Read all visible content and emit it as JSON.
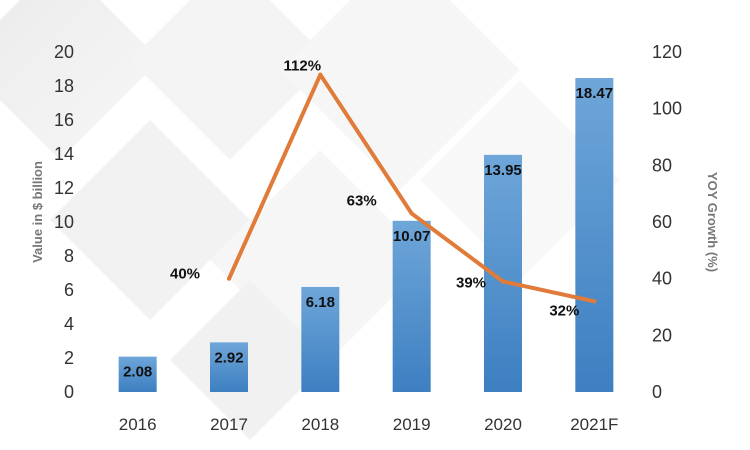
{
  "chart_data": {
    "type": "bar",
    "title": "",
    "categories": [
      "2016",
      "2017",
      "2018",
      "2019",
      "2020",
      "2021F"
    ],
    "series": [
      {
        "name": "Value in $ billion",
        "type": "bar",
        "axis": "left",
        "values": [
          2.08,
          2.92,
          6.18,
          10.07,
          13.95,
          18.47
        ],
        "labels": [
          "2.08",
          "2.92",
          "6.18",
          "10.07",
          "13.95",
          "18.47"
        ]
      },
      {
        "name": "YOY Growth (%)",
        "type": "line",
        "axis": "right",
        "x": [
          "2017",
          "2018",
          "2019",
          "2020",
          "2021F"
        ],
        "values": [
          40,
          112,
          63,
          39,
          32
        ],
        "labels": [
          "40%",
          "112%",
          "63%",
          "39%",
          "32%"
        ]
      }
    ],
    "ylabel": "Value in $ billion",
    "y2label": "YOY Growth (%)",
    "ylim": [
      0,
      20
    ],
    "y2lim": [
      0,
      120
    ],
    "yticks": [
      "0",
      "2",
      "4",
      "6",
      "8",
      "10",
      "12",
      "14",
      "16",
      "18",
      "20"
    ],
    "y2ticks": [
      "0",
      "20",
      "40",
      "60",
      "80",
      "100",
      "120"
    ],
    "grid": false,
    "colors": {
      "bar_top": "#6ea6d9",
      "bar_bottom": "#3d7fc1",
      "line": "#e07b39"
    }
  }
}
